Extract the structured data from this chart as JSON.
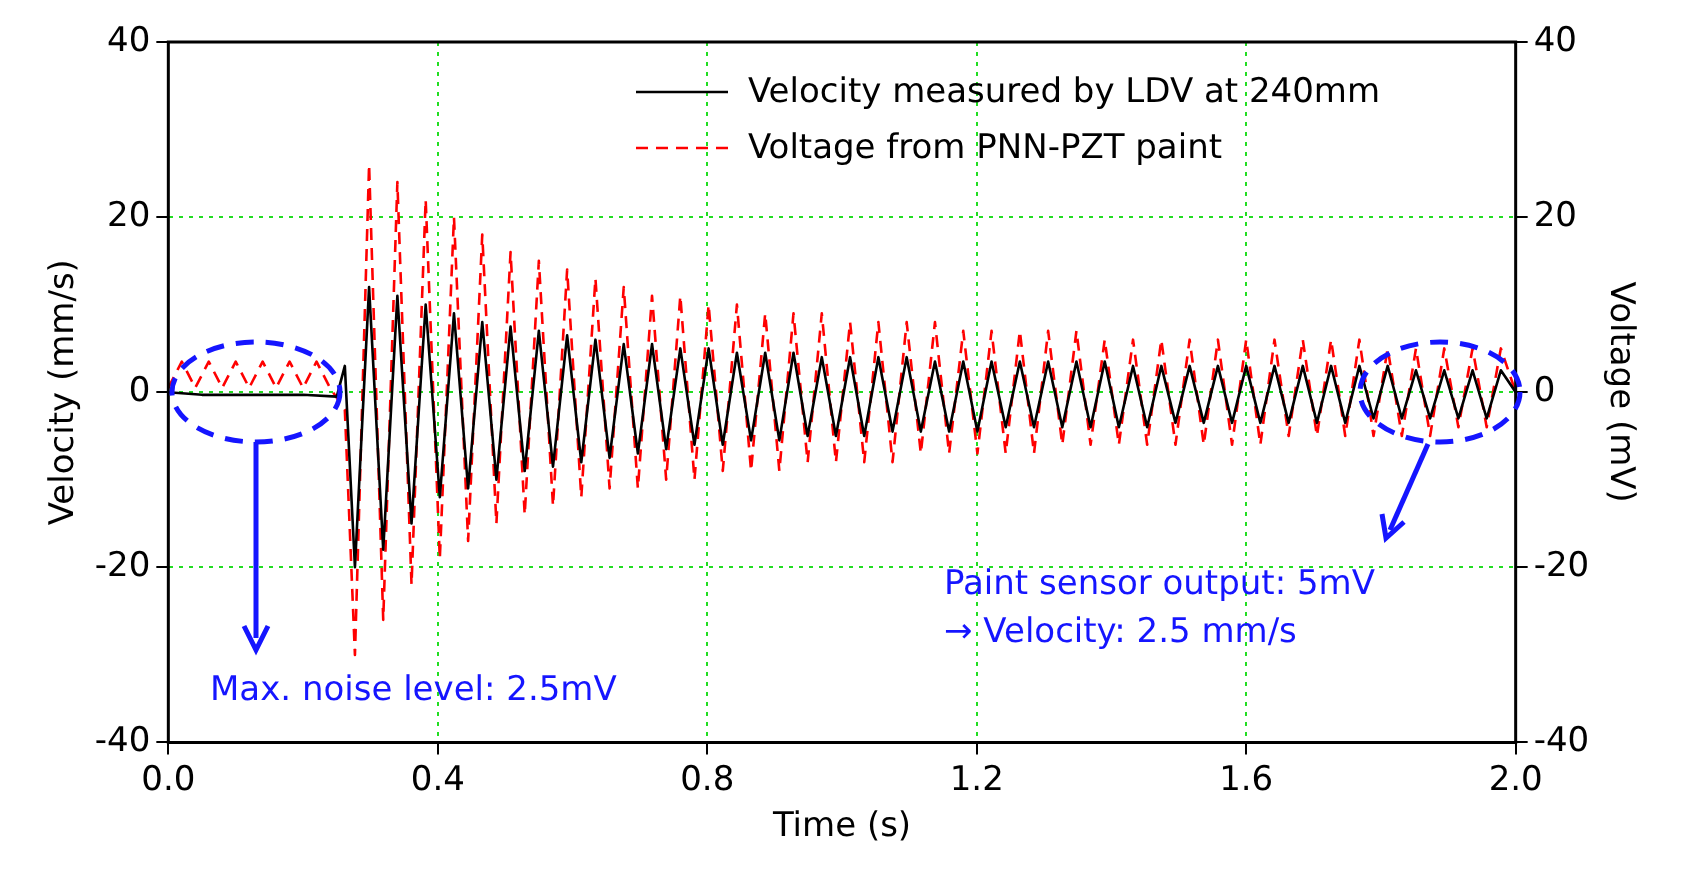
{
  "chart_data": {
    "type": "line",
    "xlabel": "Time (s)",
    "ylabel": "Velocity (mm/s)",
    "y2label": "Voltage (mV)",
    "xlim": [
      0,
      2
    ],
    "xticks": [
      {
        "value": 0,
        "label": "0.0"
      },
      0.4,
      0.8,
      1.2,
      1.6,
      {
        "value": 2,
        "label": "2.0"
      }
    ],
    "ylim": [
      -40,
      40
    ],
    "yticks": [
      -40,
      -20,
      0,
      20,
      40
    ],
    "y2lim": [
      -40,
      40
    ],
    "y2ticks": [
      -40,
      -20,
      0,
      20,
      40
    ],
    "grid": true,
    "legend": "top right",
    "marker": "none",
    "annotations": [
      "Max. noise level: 2.5mV",
      {
        "text": "Paint sensor output: 5mV\n→ Velocity: 2.5 mm/s",
        "x": 1.87,
        "y": -6
      }
    ],
    "series": [
      {
        "name": "Velocity measured by LDV at 240mm",
        "color": "#000000",
        "line_style": "solid",
        "x": [
          0,
          0.05,
          0.1,
          0.15,
          0.2,
          0.25,
          0.262,
          0.277,
          0.298,
          0.319,
          0.34,
          0.361,
          0.382,
          0.403,
          0.424,
          0.445,
          0.466,
          0.487,
          0.508,
          0.529,
          0.55,
          0.571,
          0.592,
          0.613,
          0.634,
          0.655,
          0.676,
          0.697,
          0.718,
          0.739,
          0.76,
          0.781,
          0.802,
          0.823,
          0.844,
          0.865,
          0.886,
          0.907,
          0.928,
          0.949,
          0.97,
          0.991,
          1.012,
          1.033,
          1.054,
          1.075,
          1.096,
          1.117,
          1.138,
          1.159,
          1.18,
          1.201,
          1.222,
          1.243,
          1.264,
          1.285,
          1.306,
          1.327,
          1.348,
          1.369,
          1.39,
          1.411,
          1.432,
          1.453,
          1.474,
          1.495,
          1.516,
          1.537,
          1.558,
          1.579,
          1.6,
          1.621,
          1.642,
          1.663,
          1.684,
          1.705,
          1.726,
          1.747,
          1.768,
          1.789,
          1.81,
          1.831,
          1.852,
          1.873,
          1.894,
          1.915,
          1.936,
          1.957,
          1.978,
          2
        ],
        "values": [
          0,
          -0.3,
          -0.3,
          -0.3,
          -0.3,
          -0.5,
          3,
          -20,
          12,
          -18,
          11,
          -15,
          10,
          -12,
          9,
          -11,
          8,
          -10,
          7.5,
          -9,
          7,
          -8.5,
          6.5,
          -8,
          6,
          -7.5,
          5.5,
          -7,
          5.5,
          -6.5,
          5,
          -6,
          5,
          -6,
          4.5,
          -5.5,
          4.5,
          -5.5,
          4.5,
          -5,
          4,
          -5,
          4,
          -5,
          4,
          -4.5,
          4,
          -4.5,
          3.5,
          -4.5,
          3.5,
          -4.5,
          3.5,
          -4,
          3.5,
          -4,
          3.5,
          -4,
          3.5,
          -4,
          3.5,
          -4,
          3,
          -4,
          3,
          -3.5,
          3,
          -3.5,
          3,
          -3.5,
          3,
          -3.5,
          3,
          -3.5,
          3,
          -3.5,
          3,
          -3.5,
          3,
          -3,
          3,
          -3,
          2.5,
          -3,
          2.5,
          -3,
          2.5,
          -3,
          2.5,
          0
        ]
      },
      {
        "name": "Voltage from PNN-PZT paint",
        "color": "#ff0000",
        "line_style": "dashed",
        "axis": "y2",
        "x": [
          0,
          0.02,
          0.04,
          0.06,
          0.08,
          0.1,
          0.12,
          0.14,
          0.16,
          0.18,
          0.2,
          0.22,
          0.24,
          0.262,
          0.277,
          0.298,
          0.319,
          0.34,
          0.361,
          0.382,
          0.403,
          0.424,
          0.445,
          0.466,
          0.487,
          0.508,
          0.529,
          0.55,
          0.571,
          0.592,
          0.613,
          0.634,
          0.655,
          0.676,
          0.697,
          0.718,
          0.739,
          0.76,
          0.781,
          0.802,
          0.823,
          0.844,
          0.865,
          0.886,
          0.907,
          0.928,
          0.949,
          0.97,
          0.991,
          1.012,
          1.033,
          1.054,
          1.075,
          1.096,
          1.117,
          1.138,
          1.159,
          1.18,
          1.201,
          1.222,
          1.243,
          1.264,
          1.285,
          1.306,
          1.327,
          1.348,
          1.369,
          1.39,
          1.411,
          1.432,
          1.453,
          1.474,
          1.495,
          1.516,
          1.537,
          1.558,
          1.579,
          1.6,
          1.621,
          1.642,
          1.663,
          1.684,
          1.705,
          1.726,
          1.747,
          1.768,
          1.789,
          1.81,
          1.831,
          1.852,
          1.873,
          1.894,
          1.915,
          1.936,
          1.957,
          1.978,
          2
        ],
        "values": [
          0.5,
          3.5,
          0.5,
          3.5,
          0.5,
          3.5,
          0.5,
          3.5,
          0.5,
          3.5,
          0.5,
          3.5,
          0.5,
          -2,
          -30,
          26,
          -26,
          24,
          -22,
          22,
          -19,
          20,
          -17,
          18,
          -15,
          16,
          -14,
          15,
          -13,
          14,
          -12,
          13,
          -11,
          12,
          -11,
          11,
          -10,
          11,
          -10,
          10,
          -9,
          10,
          -9,
          9,
          -9,
          9,
          -8,
          9,
          -8,
          8,
          -8,
          8,
          -8,
          8,
          -7,
          8,
          -7,
          7,
          -7,
          7,
          -7,
          7,
          -7,
          7,
          -6,
          7,
          -6,
          6,
          -6,
          6,
          -6,
          6,
          -6,
          6,
          -6,
          6,
          -6,
          6,
          -6,
          6,
          -5,
          6,
          -5,
          6,
          -5,
          6,
          -5,
          5,
          -5,
          5,
          -5,
          5,
          -4,
          5,
          -4,
          5,
          0
        ]
      }
    ]
  }
}
